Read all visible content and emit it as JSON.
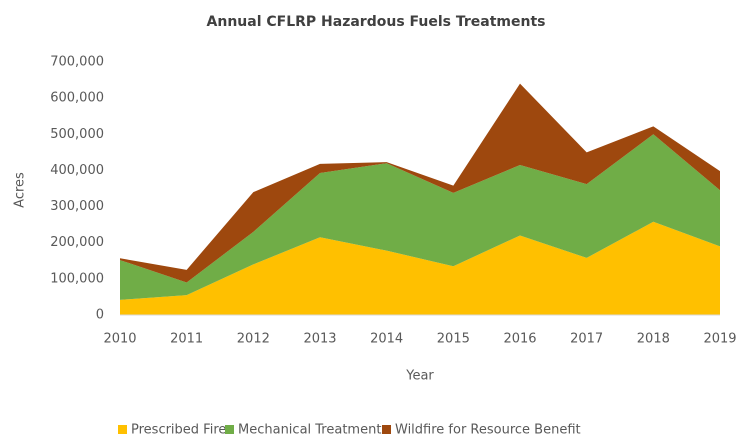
{
  "chart_data": {
    "type": "stacked_area",
    "title": "Annual CFLRP Hazardous Fuels Treatments",
    "xlabel": "Year",
    "ylabel": "Acres",
    "categories": [
      "2010",
      "2011",
      "2012",
      "2013",
      "2014",
      "2015",
      "2016",
      "2017",
      "2018",
      "2019"
    ],
    "series": [
      {
        "name": "Prescribed Fire",
        "color": "#ffc000",
        "values": [
          42000,
          55000,
          140000,
          215000,
          178000,
          135000,
          220000,
          158000,
          258000,
          190000
        ]
      },
      {
        "name": "Mechanical Treatments",
        "color": "#70ad47",
        "values": [
          110000,
          35000,
          90000,
          178000,
          242000,
          203000,
          195000,
          204000,
          242000,
          155000
        ]
      },
      {
        "name": "Wildfire for Resource Benefit",
        "color": "#9e480e",
        "values": [
          5000,
          35000,
          110000,
          25000,
          3000,
          20000,
          225000,
          88000,
          22000,
          53000
        ]
      }
    ],
    "ylim": [
      0,
      700000
    ],
    "yticks": [
      0,
      {
        "value": 100000,
        "label": "100,000"
      },
      {
        "value": 200000,
        "label": "200,000"
      },
      {
        "value": 300000,
        "label": "300,000"
      },
      {
        "value": 400000,
        "label": "400,000"
      },
      {
        "value": 500000,
        "label": "500,000"
      },
      {
        "value": 600000,
        "label": "600,000"
      },
      {
        "value": 700000,
        "label": "700,000"
      }
    ],
    "grid": false,
    "legend": "bottom"
  }
}
